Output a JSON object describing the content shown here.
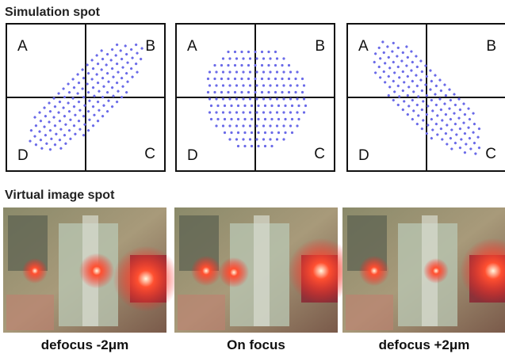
{
  "simulation": {
    "title": "Simulation spot",
    "panels": [
      {
        "labels": [
          "A",
          "B",
          "C",
          "D"
        ]
      },
      {
        "labels": [
          "A",
          "B",
          "C",
          "D"
        ]
      },
      {
        "labels": [
          "A",
          "B",
          "C",
          "D"
        ]
      }
    ]
  },
  "virtual": {
    "title": "Virtual image spot",
    "captions": [
      "defocus -2μm",
      "On focus",
      "defocus +2μm"
    ]
  }
}
